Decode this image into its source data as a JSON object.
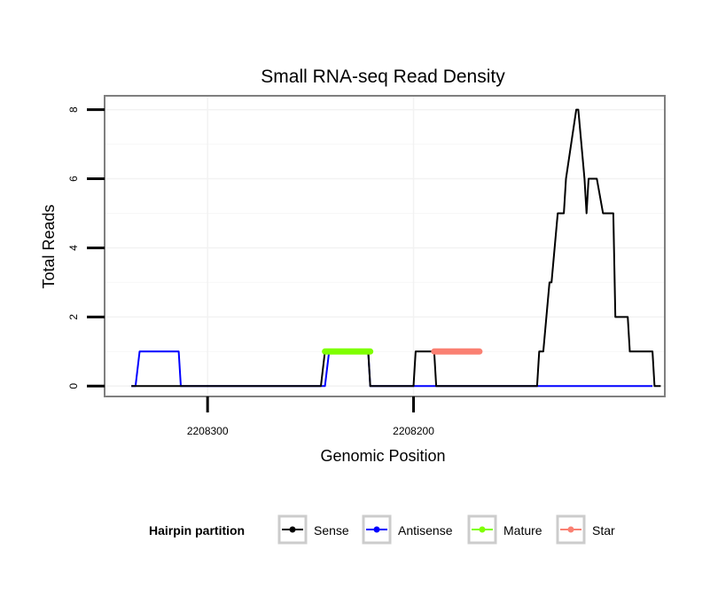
{
  "chart_data": {
    "type": "line",
    "title": "Small RNA-seq Read Density",
    "xlabel": "Genomic Position",
    "ylabel": "Total Reads",
    "x_reversed": true,
    "xlim": [
      2208350,
      2208078
    ],
    "ylim": [
      -0.3,
      8.4
    ],
    "x_ticks": [
      2208300,
      2208200
    ],
    "x_tick_labels": [
      "2208300",
      "2208200"
    ],
    "y_ticks": [
      0,
      2,
      4,
      6,
      8
    ],
    "y_tick_labels": [
      "0",
      "2",
      "4",
      "6",
      "8"
    ],
    "grid": true,
    "legend": {
      "title": "Hairpin partition",
      "position": "bottom",
      "entries": [
        {
          "label": "Sense",
          "color": "#000000"
        },
        {
          "label": "Antisense",
          "color": "#0000ff"
        },
        {
          "label": "Mature",
          "color": "#7fff00"
        },
        {
          "label": "Star",
          "color": "#fa8072"
        }
      ]
    },
    "series": [
      {
        "name": "Sense",
        "color": "#000000",
        "x": [
          2208337,
          2208245,
          2208243,
          2208242,
          2208222,
          2208221,
          2208200,
          2208199,
          2208190,
          2208189,
          2208140,
          2208139,
          2208137,
          2208134,
          2208133,
          2208130,
          2208127,
          2208126,
          2208121,
          2208120,
          2208117,
          2208116,
          2208115,
          2208114,
          2208112,
          2208111,
          2208108,
          2208107,
          2208103,
          2208102,
          2208096,
          2208095,
          2208094,
          2208091,
          2208084,
          2208083,
          2208080
        ],
        "y": [
          0,
          0,
          1,
          1,
          1,
          0,
          0,
          1,
          1,
          0,
          0,
          1,
          1,
          3,
          3,
          5,
          5,
          6,
          8,
          8,
          6,
          5,
          6,
          6,
          6,
          6,
          5,
          5,
          5,
          2,
          2,
          1,
          1,
          1,
          1,
          0,
          0
        ]
      },
      {
        "name": "Antisense",
        "color": "#0000ff",
        "x": [
          2208337,
          2208335,
          2208333,
          2208314,
          2208313,
          2208243,
          2208241,
          2208222,
          2208221,
          2208084
        ],
        "y": [
          0,
          0,
          1,
          1,
          0,
          0,
          1,
          1,
          0,
          0
        ]
      },
      {
        "name": "Mature",
        "color": "#7fff00",
        "x": [
          2208243,
          2208221
        ],
        "y": [
          1,
          1
        ]
      },
      {
        "name": "Star",
        "color": "#fa8072",
        "x": [
          2208190,
          2208168
        ],
        "y": [
          1,
          1
        ]
      }
    ]
  }
}
